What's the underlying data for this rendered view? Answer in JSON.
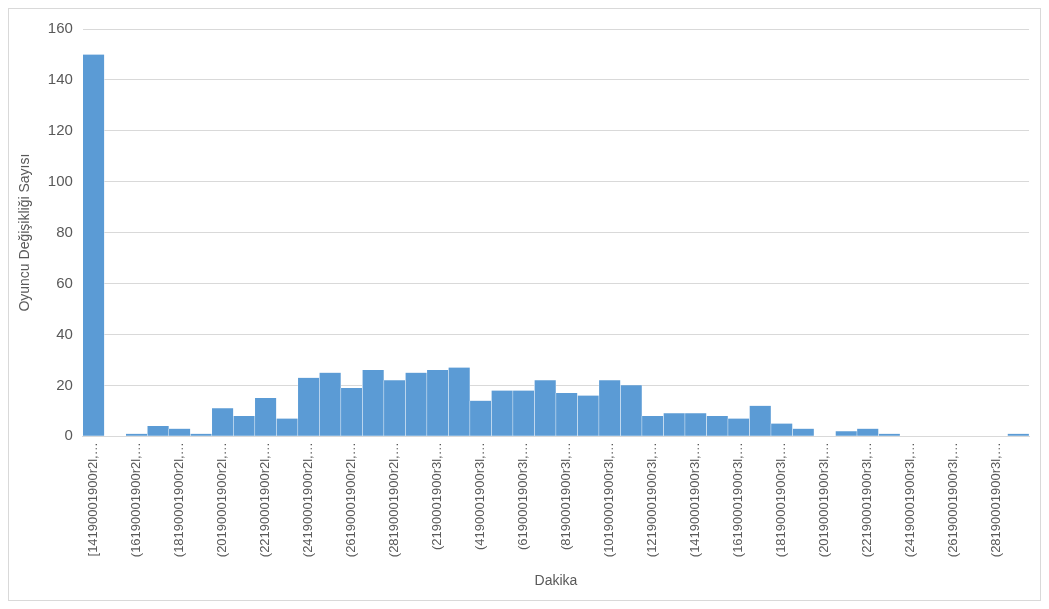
{
  "chart_data": {
    "type": "bar",
    "xlabel": "Dakika",
    "ylabel": "Oyuncu Değişikliği Sayısı",
    "categories": [
      "[14190001900r2l,…",
      null,
      "(16190001900r2l,…",
      null,
      "(18190001900r2l,…",
      null,
      "(20190001900r2l,…",
      null,
      "(22190001900r2l,…",
      null,
      "(24190001900r2l,…",
      null,
      "(26190001900r2l,…",
      null,
      "(28190001900r2l,…",
      null,
      "(2190001900r3l,…",
      null,
      "(4190001900r3l,…",
      null,
      "(6190001900r3l,…",
      null,
      "(8190001900r3l,…",
      null,
      "(10190001900r3l,…",
      null,
      "(12190001900r3l,…",
      null,
      "(14190001900r3l,…",
      null,
      "(16190001900r3l,…",
      null,
      "(18190001900r3l,…",
      null,
      "(20190001900r3l,…",
      null,
      "(22190001900r3l,…",
      null,
      "(24190001900r3l,…",
      null,
      "(26190001900r3l,…",
      null,
      "(28190001900r3l,…",
      null
    ],
    "values": [
      150,
      0,
      1,
      4,
      3,
      1,
      11,
      8,
      15,
      7,
      23,
      25,
      19,
      26,
      22,
      25,
      26,
      27,
      14,
      18,
      18,
      22,
      17,
      16,
      22,
      20,
      8,
      9,
      9,
      8,
      7,
      12,
      5,
      3,
      0,
      2,
      3,
      1,
      0,
      0,
      0,
      0,
      0,
      1
    ],
    "color": "#5b9bd5",
    "ylim": [
      0,
      160
    ],
    "yticks": [
      0,
      20,
      40,
      60,
      80,
      100,
      120,
      140,
      160
    ],
    "grid": "y"
  }
}
